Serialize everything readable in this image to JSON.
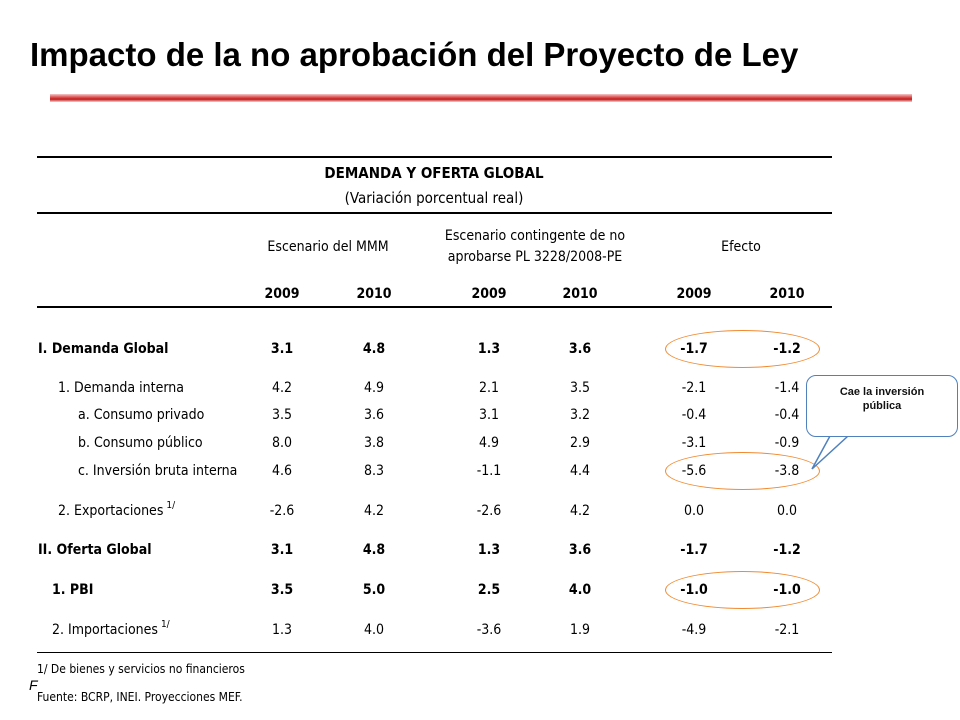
{
  "title": "Impacto de la no aprobación del Proyecto de Ley",
  "table": {
    "title": "DEMANDA Y OFERTA GLOBAL",
    "subtitle": "(Variación porcentual real)",
    "groups": {
      "mmm": "Escenario del MMM",
      "contingent_line1": "Escenario contingente de no",
      "contingent_line2": "aprobarse PL 3228/2008-PE",
      "effect": "Efecto"
    },
    "years": [
      "2009",
      "2010",
      "2009",
      "2010",
      "2009",
      "2010"
    ],
    "rows": [
      {
        "label": "I. Demanda Global",
        "sup": "",
        "values": [
          "3.1",
          "4.8",
          "1.3",
          "3.6",
          "-1.7",
          "-1.2"
        ]
      },
      {
        "label": "1. Demanda interna",
        "sup": "",
        "values": [
          "4.2",
          "4.9",
          "2.1",
          "3.5",
          "-2.1",
          "-1.4"
        ]
      },
      {
        "label": "a. Consumo privado",
        "sup": "",
        "values": [
          "3.5",
          "3.6",
          "3.1",
          "3.2",
          "-0.4",
          "-0.4"
        ]
      },
      {
        "label": "b. Consumo público",
        "sup": "",
        "values": [
          "8.0",
          "3.8",
          "4.9",
          "2.9",
          "-3.1",
          "-0.9"
        ]
      },
      {
        "label": "c. Inversión bruta interna",
        "sup": "",
        "values": [
          "4.6",
          "8.3",
          "-1.1",
          "4.4",
          "-5.6",
          "-3.8"
        ]
      },
      {
        "label": "2. Exportaciones",
        "sup": "1/",
        "values": [
          "-2.6",
          "4.2",
          "-2.6",
          "4.2",
          "0.0",
          "0.0"
        ]
      },
      {
        "label": "II. Oferta Global",
        "sup": "",
        "values": [
          "3.1",
          "4.8",
          "1.3",
          "3.6",
          "-1.7",
          "-1.2"
        ]
      },
      {
        "label": "1. PBI",
        "sup": "",
        "values": [
          "3.5",
          "5.0",
          "2.5",
          "4.0",
          "-1.0",
          "-1.0"
        ]
      },
      {
        "label": "2. Importaciones",
        "sup": "1/",
        "values": [
          "1.3",
          "4.0",
          "-3.6",
          "1.9",
          "-4.9",
          "-2.1"
        ]
      }
    ],
    "notes": {
      "note1": "1/ De bienes y servicios no financieros",
      "source": "Fuente:  BCRP, INEI. Proyecciones MEF.",
      "stray_char": "F"
    }
  },
  "callout": {
    "text_line1": "Cae la inversión",
    "text_line2": "pública"
  },
  "colors": {
    "highlight_oval": "#f08a30",
    "callout_border": "#4f81bd",
    "title_bar": "#c41a1a"
  }
}
